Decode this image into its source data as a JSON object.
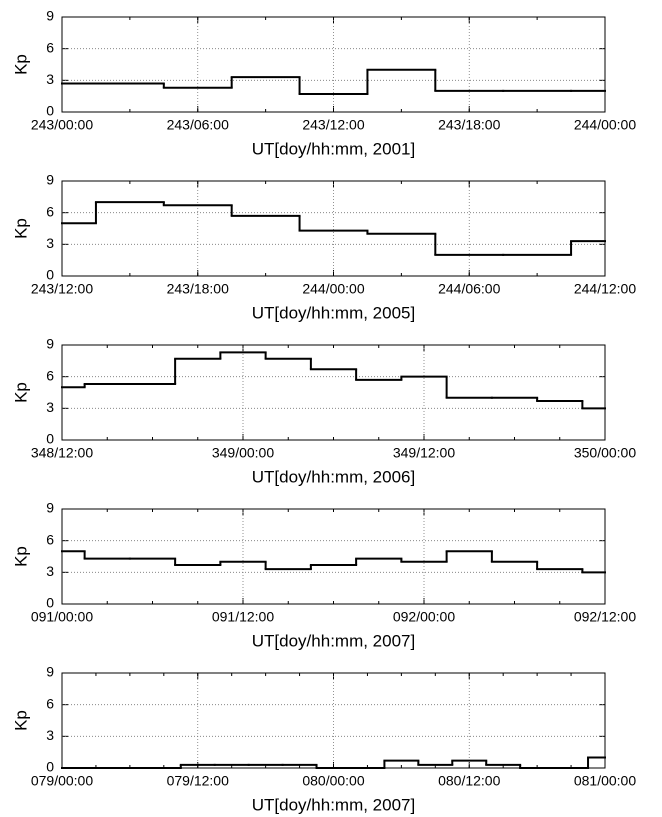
{
  "chart_data": [
    {
      "type": "line",
      "step": "mid",
      "color": "#000000",
      "grid": true,
      "ylabel": "Kp",
      "xlabel": "UT[doy/hh:mm, 2001]",
      "x": [
        0,
        3,
        6,
        9,
        12,
        15,
        18,
        21,
        24
      ],
      "values": [
        2.7,
        2.7,
        2.3,
        3.3,
        1.7,
        4,
        2,
        2,
        2
      ],
      "xlim": [
        0,
        24
      ],
      "xticks": [
        {
          "value": 0,
          "label": "243/00:00"
        },
        {
          "value": 6,
          "label": "243/06:00"
        },
        {
          "value": 12,
          "label": "243/12:00"
        },
        {
          "value": 18,
          "label": "243/18:00"
        },
        {
          "value": 24,
          "label": "244/00:00"
        }
      ],
      "ylim": [
        0,
        9
      ],
      "yticks": [
        0,
        3,
        6,
        9
      ]
    },
    {
      "type": "line",
      "step": "mid",
      "color": "#000000",
      "grid": true,
      "ylabel": "Kp",
      "xlabel": "UT[doy/hh:mm, 2005]",
      "x": [
        0,
        3,
        6,
        9,
        12,
        15,
        18,
        21,
        24
      ],
      "values": [
        5,
        7,
        6.7,
        5.7,
        4.3,
        4,
        2,
        2,
        3.3
      ],
      "xlim": [
        0,
        24
      ],
      "xticks": [
        {
          "value": 0,
          "label": "243/12:00"
        },
        {
          "value": 6,
          "label": "243/18:00"
        },
        {
          "value": 12,
          "label": "244/00:00"
        },
        {
          "value": 18,
          "label": "244/06:00"
        },
        {
          "value": 24,
          "label": "244/12:00"
        }
      ],
      "ylim": [
        0,
        9
      ],
      "yticks": [
        0,
        3,
        6,
        9
      ]
    },
    {
      "type": "line",
      "step": "mid",
      "color": "#000000",
      "grid": true,
      "ylabel": "Kp",
      "xlabel": "UT[doy/hh:mm, 2006]",
      "x": [
        0,
        3,
        6,
        9,
        12,
        15,
        18,
        21,
        24,
        27,
        30,
        33,
        36
      ],
      "values": [
        5,
        5.3,
        5.3,
        7.7,
        8.3,
        7.7,
        6.7,
        5.7,
        6,
        4,
        4,
        3.7,
        3
      ],
      "xlim": [
        0,
        36
      ],
      "xticks": [
        {
          "value": 0,
          "label": "348/12:00"
        },
        {
          "value": 12,
          "label": "349/00:00"
        },
        {
          "value": 24,
          "label": "349/12:00"
        },
        {
          "value": 36,
          "label": "350/00:00"
        }
      ],
      "ylim": [
        0,
        9
      ],
      "yticks": [
        0,
        3,
        6,
        9
      ]
    },
    {
      "type": "line",
      "step": "mid",
      "color": "#000000",
      "grid": true,
      "ylabel": "Kp",
      "xlabel": "UT[doy/hh:mm, 2007]",
      "x": [
        0,
        3,
        6,
        9,
        12,
        15,
        18,
        21,
        24,
        27,
        30,
        33,
        36
      ],
      "values": [
        5,
        4.3,
        4.3,
        3.7,
        4,
        3.3,
        3.7,
        4.3,
        4,
        5,
        4,
        3.3,
        3
      ],
      "xlim": [
        0,
        36
      ],
      "xticks": [
        {
          "value": 0,
          "label": "091/00:00"
        },
        {
          "value": 12,
          "label": "091/12:00"
        },
        {
          "value": 24,
          "label": "092/00:00"
        },
        {
          "value": 36,
          "label": "092/12:00"
        }
      ],
      "ylim": [
        0,
        9
      ],
      "yticks": [
        0,
        3,
        6,
        9
      ]
    },
    {
      "type": "line",
      "step": "mid",
      "color": "#000000",
      "grid": true,
      "ylabel": "Kp",
      "xlabel": "UT[doy/hh:mm, 2007]",
      "x": [
        0,
        3,
        6,
        9,
        12,
        15,
        18,
        21,
        24,
        27,
        30,
        33,
        36,
        39,
        42,
        45,
        48
      ],
      "values": [
        0,
        0,
        0,
        0,
        0.3,
        0.3,
        0.3,
        0.3,
        0,
        0,
        0.7,
        0.3,
        0.7,
        0.3,
        0,
        0,
        1
      ],
      "xlim": [
        0,
        48
      ],
      "xticks": [
        {
          "value": 0,
          "label": "079/00:00"
        },
        {
          "value": 12,
          "label": "079/12:00"
        },
        {
          "value": 24,
          "label": "080/00:00"
        },
        {
          "value": 36,
          "label": "080/12:00"
        },
        {
          "value": 48,
          "label": "081/00:00"
        }
      ],
      "ylim": [
        0,
        9
      ],
      "yticks": [
        0,
        3,
        6,
        9
      ]
    }
  ]
}
